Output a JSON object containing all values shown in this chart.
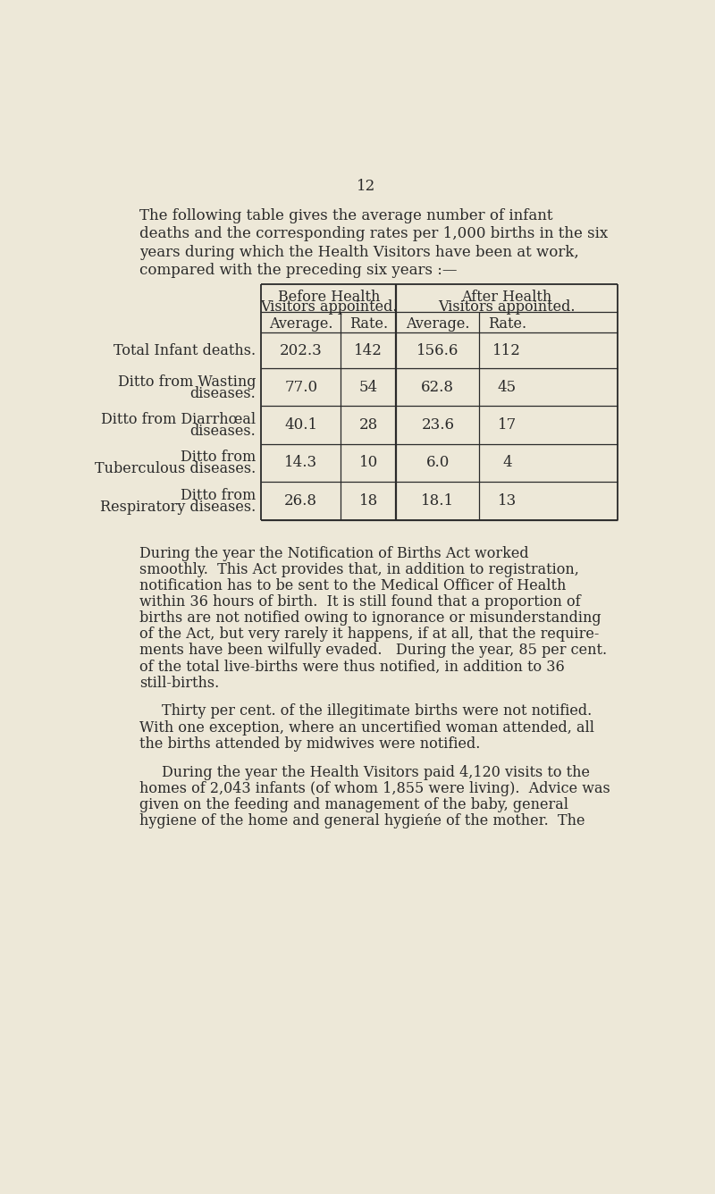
{
  "bg_color": "#ede8d8",
  "text_color": "#2a2a2a",
  "page_number": "12",
  "intro_lines": [
    "The following table gives the average number of infant",
    "deaths and the corresponding rates per 1,000 births in the six",
    "years during which the Health Visitors have been at work,",
    "compared with the preceding six years :—"
  ],
  "col_headers_top": [
    "Before Health",
    "Visitors appointed.",
    "After Health",
    "Visitors appointed."
  ],
  "col_headers_sub": [
    "Average.",
    "Rate.",
    "Average.",
    "Rate."
  ],
  "row_labels_line1": [
    "Total Infant deaths.",
    "Ditto from Wasting",
    "Ditto from Diarrhœal",
    "Ditto from",
    "Ditto from"
  ],
  "row_labels_line2": [
    "",
    "diseases.",
    "diseases.",
    "Tuberculous diseases.",
    "Respiratory diseases."
  ],
  "table_data": [
    [
      "202.3",
      "142",
      "156.6",
      "112"
    ],
    [
      "77.0",
      "54",
      "62.8",
      "45"
    ],
    [
      "40.1",
      "28",
      "23.6",
      "17"
    ],
    [
      "14.3",
      "10",
      "6.0",
      "4"
    ],
    [
      "26.8",
      "18",
      "18.1",
      "13"
    ]
  ],
  "para1_lines": [
    "During the year the Notification of Births Act worked",
    "smoothly.  This Act provides that, in addition to registration,",
    "notification has to be sent to the Medical Officer of Health",
    "within 36 hours of birth.  It is still found that a proportion of",
    "births are not notified owing to ignorance or misunderstanding",
    "of the Act, but very rarely it happens, if at all, that the require-",
    "ments have been wilfully evaded.   During the year, 85 per cent.",
    "of the total live-births were thus notified, in addition to 36",
    "still-births."
  ],
  "para2_lines": [
    "Thirty per cent. of the illegitimate births were not notified.",
    "With one exception, where an uncertified woman attended, all",
    "the births attended by midwives were notified."
  ],
  "para3_lines": [
    "During the year the Health Visitors paid 4,120 visits to the",
    "homes of 2,043 infants (of whom 1,855 were living).  Advice was",
    "given on the feeding and management of the baby, general",
    "hygiene of the home and general hygieńe of the mother.  The"
  ]
}
